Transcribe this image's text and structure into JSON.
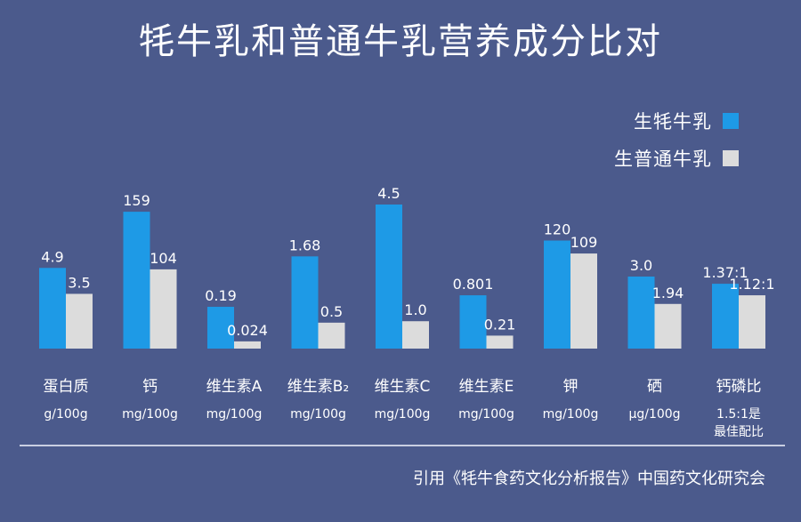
{
  "title": "牦牛乳和普通牛乳营养成分比对",
  "legend": [
    {
      "label": "生牦牛乳",
      "color": "#1e9ae6"
    },
    {
      "label": "生普通牛乳",
      "color": "#dcdcdc"
    }
  ],
  "source": "引用《牦牛食药文化分析报告》中国药文化研究会",
  "chart_data": {
    "type": "bar",
    "title": "牦牛乳和普通牛乳营养成分比对",
    "categories": [
      "蛋白质",
      "钙",
      "维生素A",
      "维生素B₂",
      "维生素C",
      "维生素E",
      "钾",
      "硒",
      "钙磷比"
    ],
    "units": [
      "g/100g",
      "mg/100g",
      "mg/100g",
      "mg/100g",
      "mg/100g",
      "mg/100g",
      "mg/100g",
      "μg/100g",
      "1.5:1是最佳配比"
    ],
    "series": [
      {
        "name": "生牦牛乳",
        "color": "#1e9ae6",
        "values": [
          4.9,
          159,
          0.19,
          1.68,
          4.5,
          0.801,
          120,
          3.0,
          1.37
        ],
        "labels": [
          "4.9",
          "159",
          "0.19",
          "1.68",
          "4.5",
          "0.801",
          "120",
          "3.0",
          "1.37:1"
        ]
      },
      {
        "name": "生普通牛乳",
        "color": "#dcdcdc",
        "values": [
          3.5,
          104,
          0.024,
          0.5,
          1.0,
          0.21,
          109,
          1.94,
          1.12
        ],
        "labels": [
          "3.5",
          "104",
          "0.024",
          "0.5",
          "1.0",
          "0.21",
          "109",
          "1.94",
          "1.12:1"
        ]
      }
    ],
    "bar_heights_relative": {
      "note": "",
      "series1": [
        0.56,
        0.95,
        0.29,
        0.64,
        1.0,
        0.37,
        0.75,
        0.5,
        0.45
      ],
      "series2": [
        0.38,
        0.55,
        0.05,
        0.18,
        0.19,
        0.09,
        0.66,
        0.31,
        0.37
      ]
    }
  }
}
